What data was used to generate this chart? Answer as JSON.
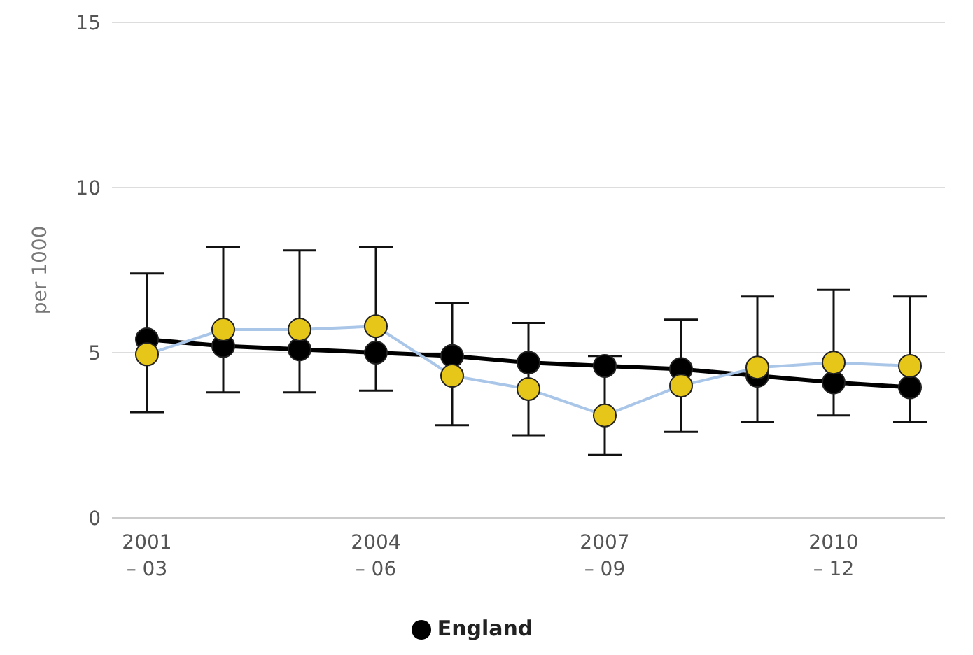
{
  "chart_data": {
    "type": "line",
    "ylabel": "per 1000",
    "categories": [
      "2001\n– 03",
      null,
      null,
      "2004\n– 06",
      null,
      null,
      "2007\n– 09",
      null,
      null,
      "2010\n– 12",
      null
    ],
    "series": [
      {
        "name": "England",
        "color": "#000000",
        "values": [
          5.4,
          5.2,
          5.1,
          5.0,
          4.9,
          4.7,
          4.6,
          4.5,
          4.3,
          4.1,
          3.95
        ]
      },
      {
        "color": "#a9c6e8",
        "colors": [
          "#e6c619",
          "#e6c619",
          "#e6c619",
          "#e6c619",
          "#e6c619",
          "#e6c619",
          "#e6c619",
          "#e6c619",
          "#e6c619",
          "#e6c619",
          "#e6c619"
        ],
        "values": [
          4.95,
          5.7,
          5.7,
          5.8,
          4.3,
          3.9,
          3.1,
          4.0,
          4.55,
          4.7,
          4.6
        ],
        "errors": [
          [
            3.2,
            7.4
          ],
          [
            3.8,
            8.2
          ],
          [
            3.8,
            8.1
          ],
          [
            3.85,
            8.2
          ],
          [
            2.8,
            6.5
          ],
          [
            2.5,
            5.9
          ],
          [
            1.9,
            4.9
          ],
          [
            2.6,
            6.0
          ],
          [
            2.9,
            6.7
          ],
          [
            3.1,
            6.9
          ],
          [
            2.9,
            6.7
          ]
        ]
      }
    ],
    "ylim": [
      0,
      15
    ],
    "yticks": [
      0,
      5,
      10,
      15
    ],
    "grid": "y",
    "legend": "bottom",
    "marker": "circle",
    "line_style": "solid"
  }
}
